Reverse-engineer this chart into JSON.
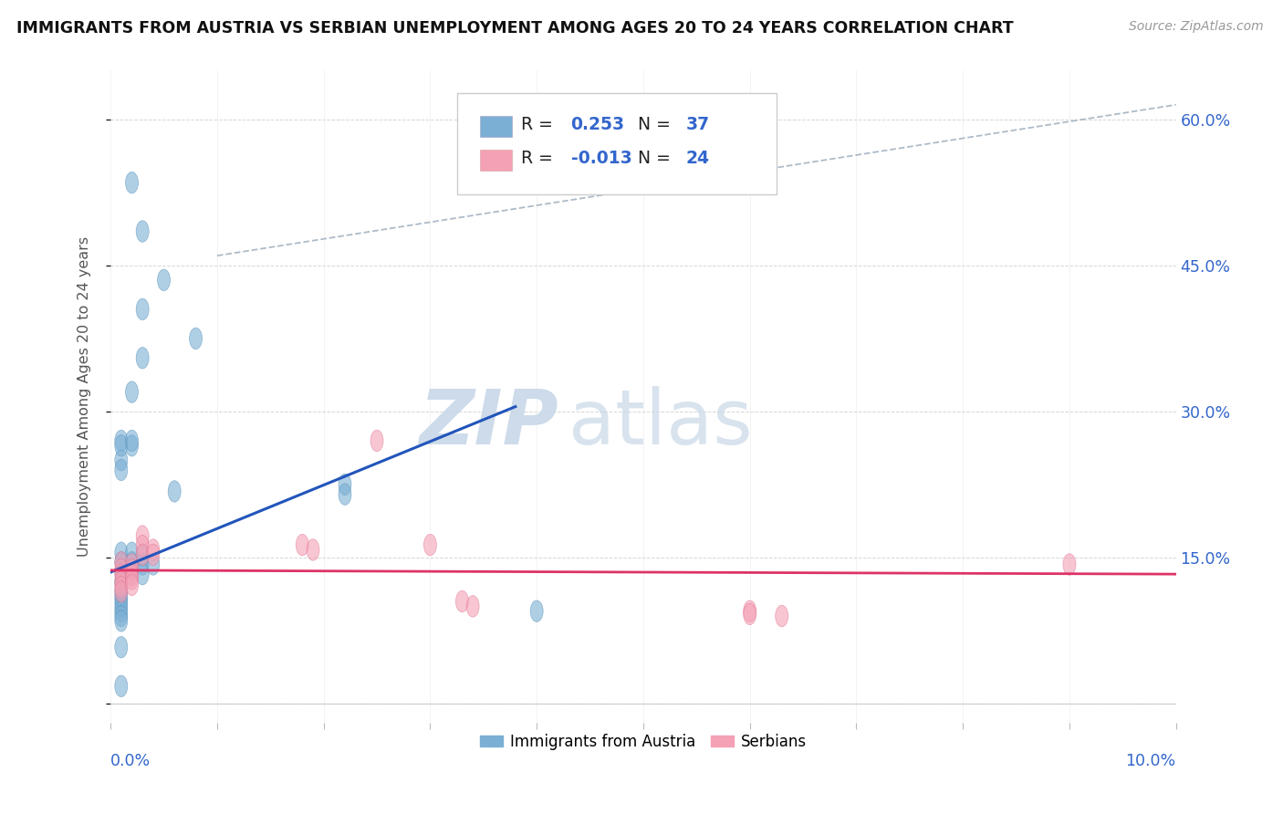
{
  "title": "IMMIGRANTS FROM AUSTRIA VS SERBIAN UNEMPLOYMENT AMONG AGES 20 TO 24 YEARS CORRELATION CHART",
  "source": "Source: ZipAtlas.com",
  "xlim": [
    0.0,
    0.1
  ],
  "ylim": [
    -0.02,
    0.65
  ],
  "y_ticks": [
    0.0,
    0.15,
    0.3,
    0.45,
    0.6
  ],
  "y_labels": [
    "",
    "15.0%",
    "30.0%",
    "45.0%",
    "60.0%"
  ],
  "blue_scatter": [
    [
      0.002,
      0.535
    ],
    [
      0.003,
      0.485
    ],
    [
      0.008,
      0.375
    ],
    [
      0.005,
      0.435
    ],
    [
      0.003,
      0.405
    ],
    [
      0.003,
      0.355
    ],
    [
      0.002,
      0.32
    ],
    [
      0.002,
      0.265
    ],
    [
      0.001,
      0.27
    ],
    [
      0.001,
      0.25
    ],
    [
      0.001,
      0.24
    ],
    [
      0.001,
      0.265
    ],
    [
      0.001,
      0.155
    ],
    [
      0.001,
      0.145
    ],
    [
      0.001,
      0.135
    ],
    [
      0.001,
      0.125
    ],
    [
      0.001,
      0.115
    ],
    [
      0.001,
      0.11
    ],
    [
      0.001,
      0.105
    ],
    [
      0.001,
      0.1
    ],
    [
      0.001,
      0.095
    ],
    [
      0.001,
      0.09
    ],
    [
      0.001,
      0.085
    ],
    [
      0.002,
      0.155
    ],
    [
      0.002,
      0.145
    ],
    [
      0.002,
      0.138
    ],
    [
      0.003,
      0.152
    ],
    [
      0.003,
      0.143
    ],
    [
      0.003,
      0.133
    ],
    [
      0.004,
      0.143
    ],
    [
      0.006,
      0.218
    ],
    [
      0.022,
      0.225
    ],
    [
      0.022,
      0.215
    ],
    [
      0.001,
      0.058
    ],
    [
      0.001,
      0.018
    ],
    [
      0.002,
      0.27
    ],
    [
      0.04,
      0.095
    ]
  ],
  "pink_scatter": [
    [
      0.001,
      0.145
    ],
    [
      0.001,
      0.138
    ],
    [
      0.001,
      0.132
    ],
    [
      0.001,
      0.125
    ],
    [
      0.001,
      0.12
    ],
    [
      0.001,
      0.115
    ],
    [
      0.002,
      0.143
    ],
    [
      0.002,
      0.138
    ],
    [
      0.002,
      0.132
    ],
    [
      0.002,
      0.128
    ],
    [
      0.002,
      0.122
    ],
    [
      0.003,
      0.172
    ],
    [
      0.003,
      0.162
    ],
    [
      0.003,
      0.153
    ],
    [
      0.004,
      0.158
    ],
    [
      0.004,
      0.153
    ],
    [
      0.018,
      0.163
    ],
    [
      0.019,
      0.158
    ],
    [
      0.025,
      0.27
    ],
    [
      0.03,
      0.163
    ],
    [
      0.033,
      0.105
    ],
    [
      0.034,
      0.1
    ],
    [
      0.06,
      0.095
    ],
    [
      0.06,
      0.092
    ],
    [
      0.063,
      0.09
    ],
    [
      0.09,
      0.143
    ]
  ],
  "blue_color": "#7bafd4",
  "blue_edge_color": "#5590bb",
  "pink_color": "#f4a0b5",
  "pink_edge_color": "#e07090",
  "blue_line_color": "#2255bb",
  "pink_line_color": "#dd3366",
  "dashed_line_color": "#99aabb",
  "grid_color": "#cccccc",
  "right_tick_color": "#3366cc",
  "ylabel_color": "#555555",
  "title_color": "#111111",
  "source_color": "#999999",
  "watermark_zip_color": "#c8d8e8",
  "watermark_atlas_color": "#c8d8e8",
  "background_color": "#ffffff",
  "blue_line_x0": 0.0,
  "blue_line_y0": 0.135,
  "blue_line_x1": 0.038,
  "blue_line_y1": 0.305,
  "pink_line_x0": 0.0,
  "pink_line_y0": 0.137,
  "pink_line_x1": 0.1,
  "pink_line_y1": 0.133,
  "dashed_line_x0": 0.01,
  "dashed_line_y0": 0.46,
  "dashed_line_x1": 0.1,
  "dashed_line_y1": 0.615
}
